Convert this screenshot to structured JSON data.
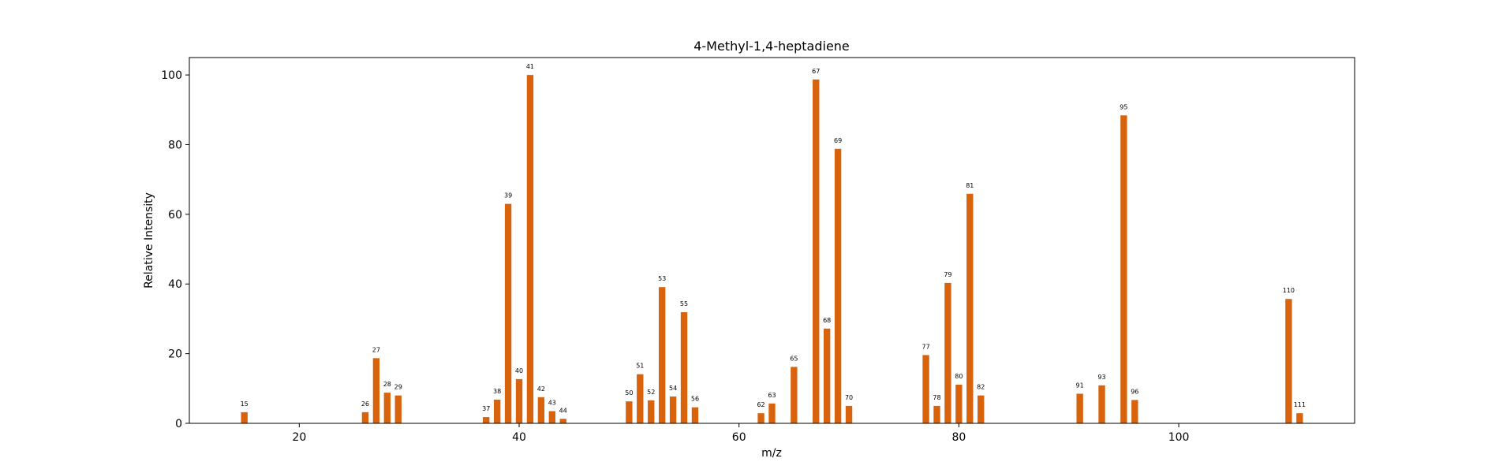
{
  "chart_data": {
    "type": "bar",
    "title": "4-Methyl-1,4-heptadiene",
    "xlabel": "m/z",
    "ylabel": "Relative Intensity",
    "xlim": [
      10,
      116
    ],
    "ylim": [
      0,
      105
    ],
    "xticks": [
      20,
      40,
      60,
      80,
      100
    ],
    "yticks": [
      0,
      20,
      40,
      60,
      80,
      100
    ],
    "grid": false,
    "bar_color": "#d9620c",
    "series": [
      {
        "x": [
          15,
          26,
          27,
          28,
          29,
          37,
          38,
          39,
          40,
          41,
          42,
          43,
          44,
          50,
          51,
          52,
          53,
          54,
          55,
          56,
          62,
          63,
          65,
          67,
          68,
          69,
          70,
          77,
          78,
          79,
          80,
          81,
          82,
          91,
          93,
          95,
          96,
          110,
          111
        ],
        "values": [
          3.2,
          3.2,
          18.7,
          8.8,
          8.0,
          1.8,
          6.8,
          63.0,
          12.7,
          100.0,
          7.5,
          3.5,
          1.3,
          6.3,
          14.1,
          6.6,
          39.1,
          7.7,
          31.9,
          4.6,
          2.9,
          5.7,
          16.2,
          98.7,
          27.2,
          78.8,
          5.0,
          19.6,
          5.0,
          40.3,
          11.1,
          65.9,
          8.0,
          8.5,
          10.9,
          88.4,
          6.7,
          35.7,
          2.9
        ]
      }
    ],
    "peak_labels": [
      "15",
      "26",
      "27",
      "28",
      "29",
      "37",
      "38",
      "39",
      "40",
      "41",
      "42",
      "43",
      "44",
      "50",
      "51",
      "52",
      "53",
      "54",
      "55",
      "56",
      "62",
      "63",
      "65",
      "67",
      "68",
      "69",
      "70",
      "77",
      "78",
      "79",
      "80",
      "81",
      "82",
      "91",
      "93",
      "95",
      "96",
      "110",
      "111"
    ]
  }
}
